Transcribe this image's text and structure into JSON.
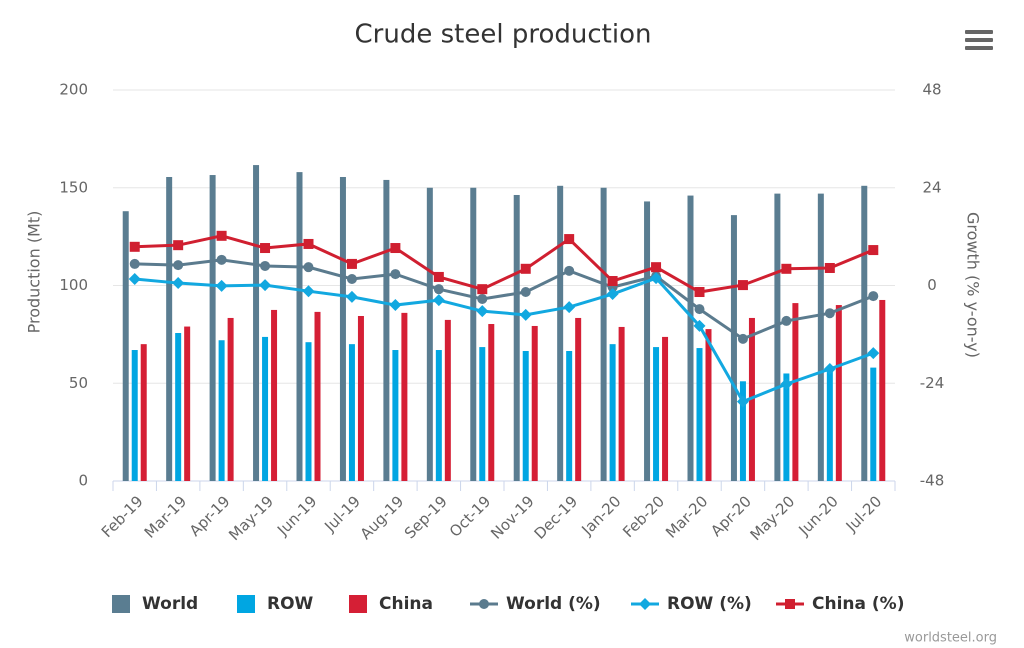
{
  "chart_data": {
    "type": "bar",
    "title": "Crude steel production",
    "y_label": "Production (Mt)",
    "y2_label": "Growth (% y-on-y)",
    "credit": "worldsteel.org",
    "categories": [
      "Feb-19",
      "Mar-19",
      "Apr-19",
      "May-19",
      "Jun-19",
      "Jul-19",
      "Aug-19",
      "Sep-19",
      "Oct-19",
      "Nov-19",
      "Dec-19",
      "Jan-20",
      "Feb-20",
      "Mar-20",
      "Apr-20",
      "May-20",
      "Jun-20",
      "Jul-20"
    ],
    "ylim": [
      0,
      200
    ],
    "yticks": [
      0,
      50,
      100,
      150,
      200
    ],
    "y2lim": [
      -48,
      48
    ],
    "y2ticks": [
      -48,
      -24,
      0,
      24,
      48
    ],
    "grid": true,
    "series": [
      {
        "name": "World",
        "type": "bar",
        "color": "#5a7d91",
        "values": [
          138,
          155.5,
          156.5,
          161.6,
          158,
          155.5,
          154,
          150,
          150,
          146.3,
          151,
          150,
          143,
          146,
          136,
          147,
          147,
          151
        ]
      },
      {
        "name": "ROW",
        "type": "bar",
        "color": "#00a6e2",
        "values": [
          67,
          75.7,
          72,
          73.7,
          71,
          70,
          67,
          67,
          68.5,
          66.5,
          66.5,
          70,
          68.5,
          68,
          51,
          55,
          57,
          58
        ]
      },
      {
        "name": "China",
        "type": "bar",
        "color": "#d51f35",
        "values": [
          70,
          79,
          83.4,
          87.5,
          86.5,
          84.4,
          86,
          82.4,
          80.3,
          79.3,
          83.4,
          78.8,
          73.7,
          77.7,
          83.4,
          91,
          90,
          92.6
        ]
      },
      {
        "name": "World (%)",
        "type": "line",
        "axis": "y2",
        "marker": "circle",
        "color": "#5b7b8e",
        "values": [
          5.3,
          5.0,
          6.3,
          4.8,
          4.5,
          1.6,
          2.8,
          -0.9,
          -3.3,
          -1.6,
          3.6,
          -0.4,
          2.3,
          -5.8,
          -13.1,
          -8.7,
          -6.8,
          -2.6
        ]
      },
      {
        "name": "ROW (%)",
        "type": "line",
        "axis": "y2",
        "marker": "diamond",
        "color": "#12a8e0",
        "values": [
          1.6,
          0.6,
          -0.1,
          0.1,
          -1.4,
          -2.8,
          -4.8,
          -3.6,
          -6.3,
          -7.2,
          -5.3,
          -2.1,
          1.8,
          -9.9,
          -28.5,
          -24.2,
          -20.5,
          -16.6
        ]
      },
      {
        "name": "China (%)",
        "type": "line",
        "axis": "y2",
        "marker": "square",
        "color": "#d01f30",
        "values": [
          9.5,
          9.9,
          12.2,
          9.2,
          10.2,
          5.3,
          9.2,
          2.1,
          -0.9,
          4.1,
          11.4,
          1.1,
          4.5,
          -1.6,
          0.1,
          4.1,
          4.3,
          8.7
        ]
      }
    ]
  }
}
